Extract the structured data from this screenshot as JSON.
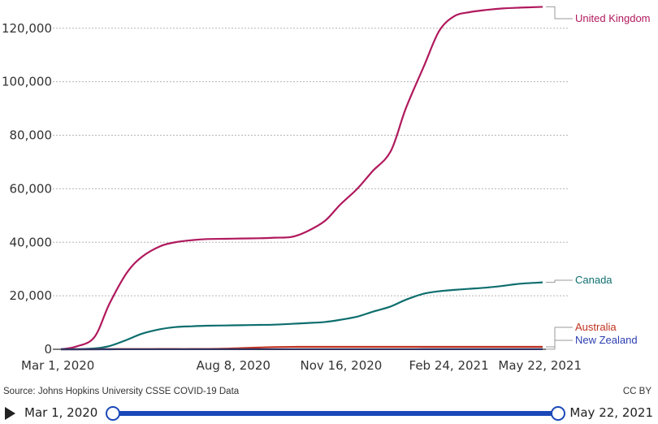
{
  "chart_data": {
    "type": "line",
    "title": "",
    "xlabel": "",
    "ylabel": "",
    "x_dates": [
      "2020-03-01",
      "2020-03-15",
      "2020-04-01",
      "2020-04-15",
      "2020-05-01",
      "2020-05-15",
      "2020-06-01",
      "2020-06-15",
      "2020-07-01",
      "2020-07-15",
      "2020-08-01",
      "2020-08-15",
      "2020-09-01",
      "2020-09-15",
      "2020-10-01",
      "2020-10-15",
      "2020-11-01",
      "2020-11-15",
      "2020-12-01",
      "2020-12-15",
      "2021-01-01",
      "2021-01-15",
      "2021-02-01",
      "2021-02-15",
      "2021-03-01",
      "2021-03-15",
      "2021-04-01",
      "2021-04-15",
      "2021-05-01",
      "2021-05-22"
    ],
    "xticks": [
      "Mar 1, 2020",
      "Aug 8, 2020",
      "Nov 16, 2020",
      "Feb 24, 2021",
      "May 22, 2021"
    ],
    "xtick_dates": [
      "2020-03-01",
      "2020-08-08",
      "2020-11-16",
      "2021-02-24",
      "2021-05-22"
    ],
    "yticks": [
      "0",
      "20,000",
      "40,000",
      "60,000",
      "80,000",
      "100,000",
      "120,000"
    ],
    "ylim": [
      0,
      125000
    ],
    "grid": true,
    "series": [
      {
        "name": "United Kingdom",
        "color": "#b0195d",
        "values": [
          0,
          1000,
          4500,
          17000,
          28500,
          34500,
          38500,
          40000,
          40800,
          41200,
          41300,
          41400,
          41500,
          41700,
          42000,
          44000,
          48000,
          54000,
          60000,
          66500,
          74000,
          90000,
          106000,
          119000,
          124500,
          126000,
          126900,
          127400,
          127700,
          128000
        ]
      },
      {
        "name": "Canada",
        "color": "#0e6e6e",
        "values": [
          0,
          0,
          300,
          1200,
          3500,
          5800,
          7500,
          8300,
          8600,
          8800,
          8900,
          9000,
          9100,
          9200,
          9500,
          9800,
          10200,
          11000,
          12200,
          14000,
          16000,
          18500,
          20800,
          21700,
          22200,
          22600,
          23100,
          23700,
          24500,
          25000
        ]
      },
      {
        "name": "Australia",
        "color": "#c0311f",
        "values": [
          0,
          0,
          10,
          60,
          95,
          100,
          102,
          104,
          106,
          140,
          220,
          420,
          650,
          810,
          890,
          904,
          907,
          908,
          908,
          908,
          909,
          909,
          909,
          909,
          909,
          909,
          910,
          910,
          910,
          910
        ]
      },
      {
        "name": "New Zealand",
        "color": "#2b3eaf",
        "values": [
          0,
          0,
          1,
          9,
          20,
          21,
          22,
          22,
          22,
          22,
          22,
          22,
          24,
          25,
          25,
          25,
          25,
          25,
          25,
          25,
          25,
          25,
          26,
          26,
          26,
          26,
          26,
          26,
          26,
          26
        ]
      }
    ]
  },
  "footer": {
    "source": "Source: Johns Hopkins University CSSE COVID-19 Data",
    "license": "CC BY"
  },
  "player": {
    "start_label": "Mar 1, 2020",
    "end_label": "May 22, 2021",
    "accent": "#1a48b8"
  }
}
